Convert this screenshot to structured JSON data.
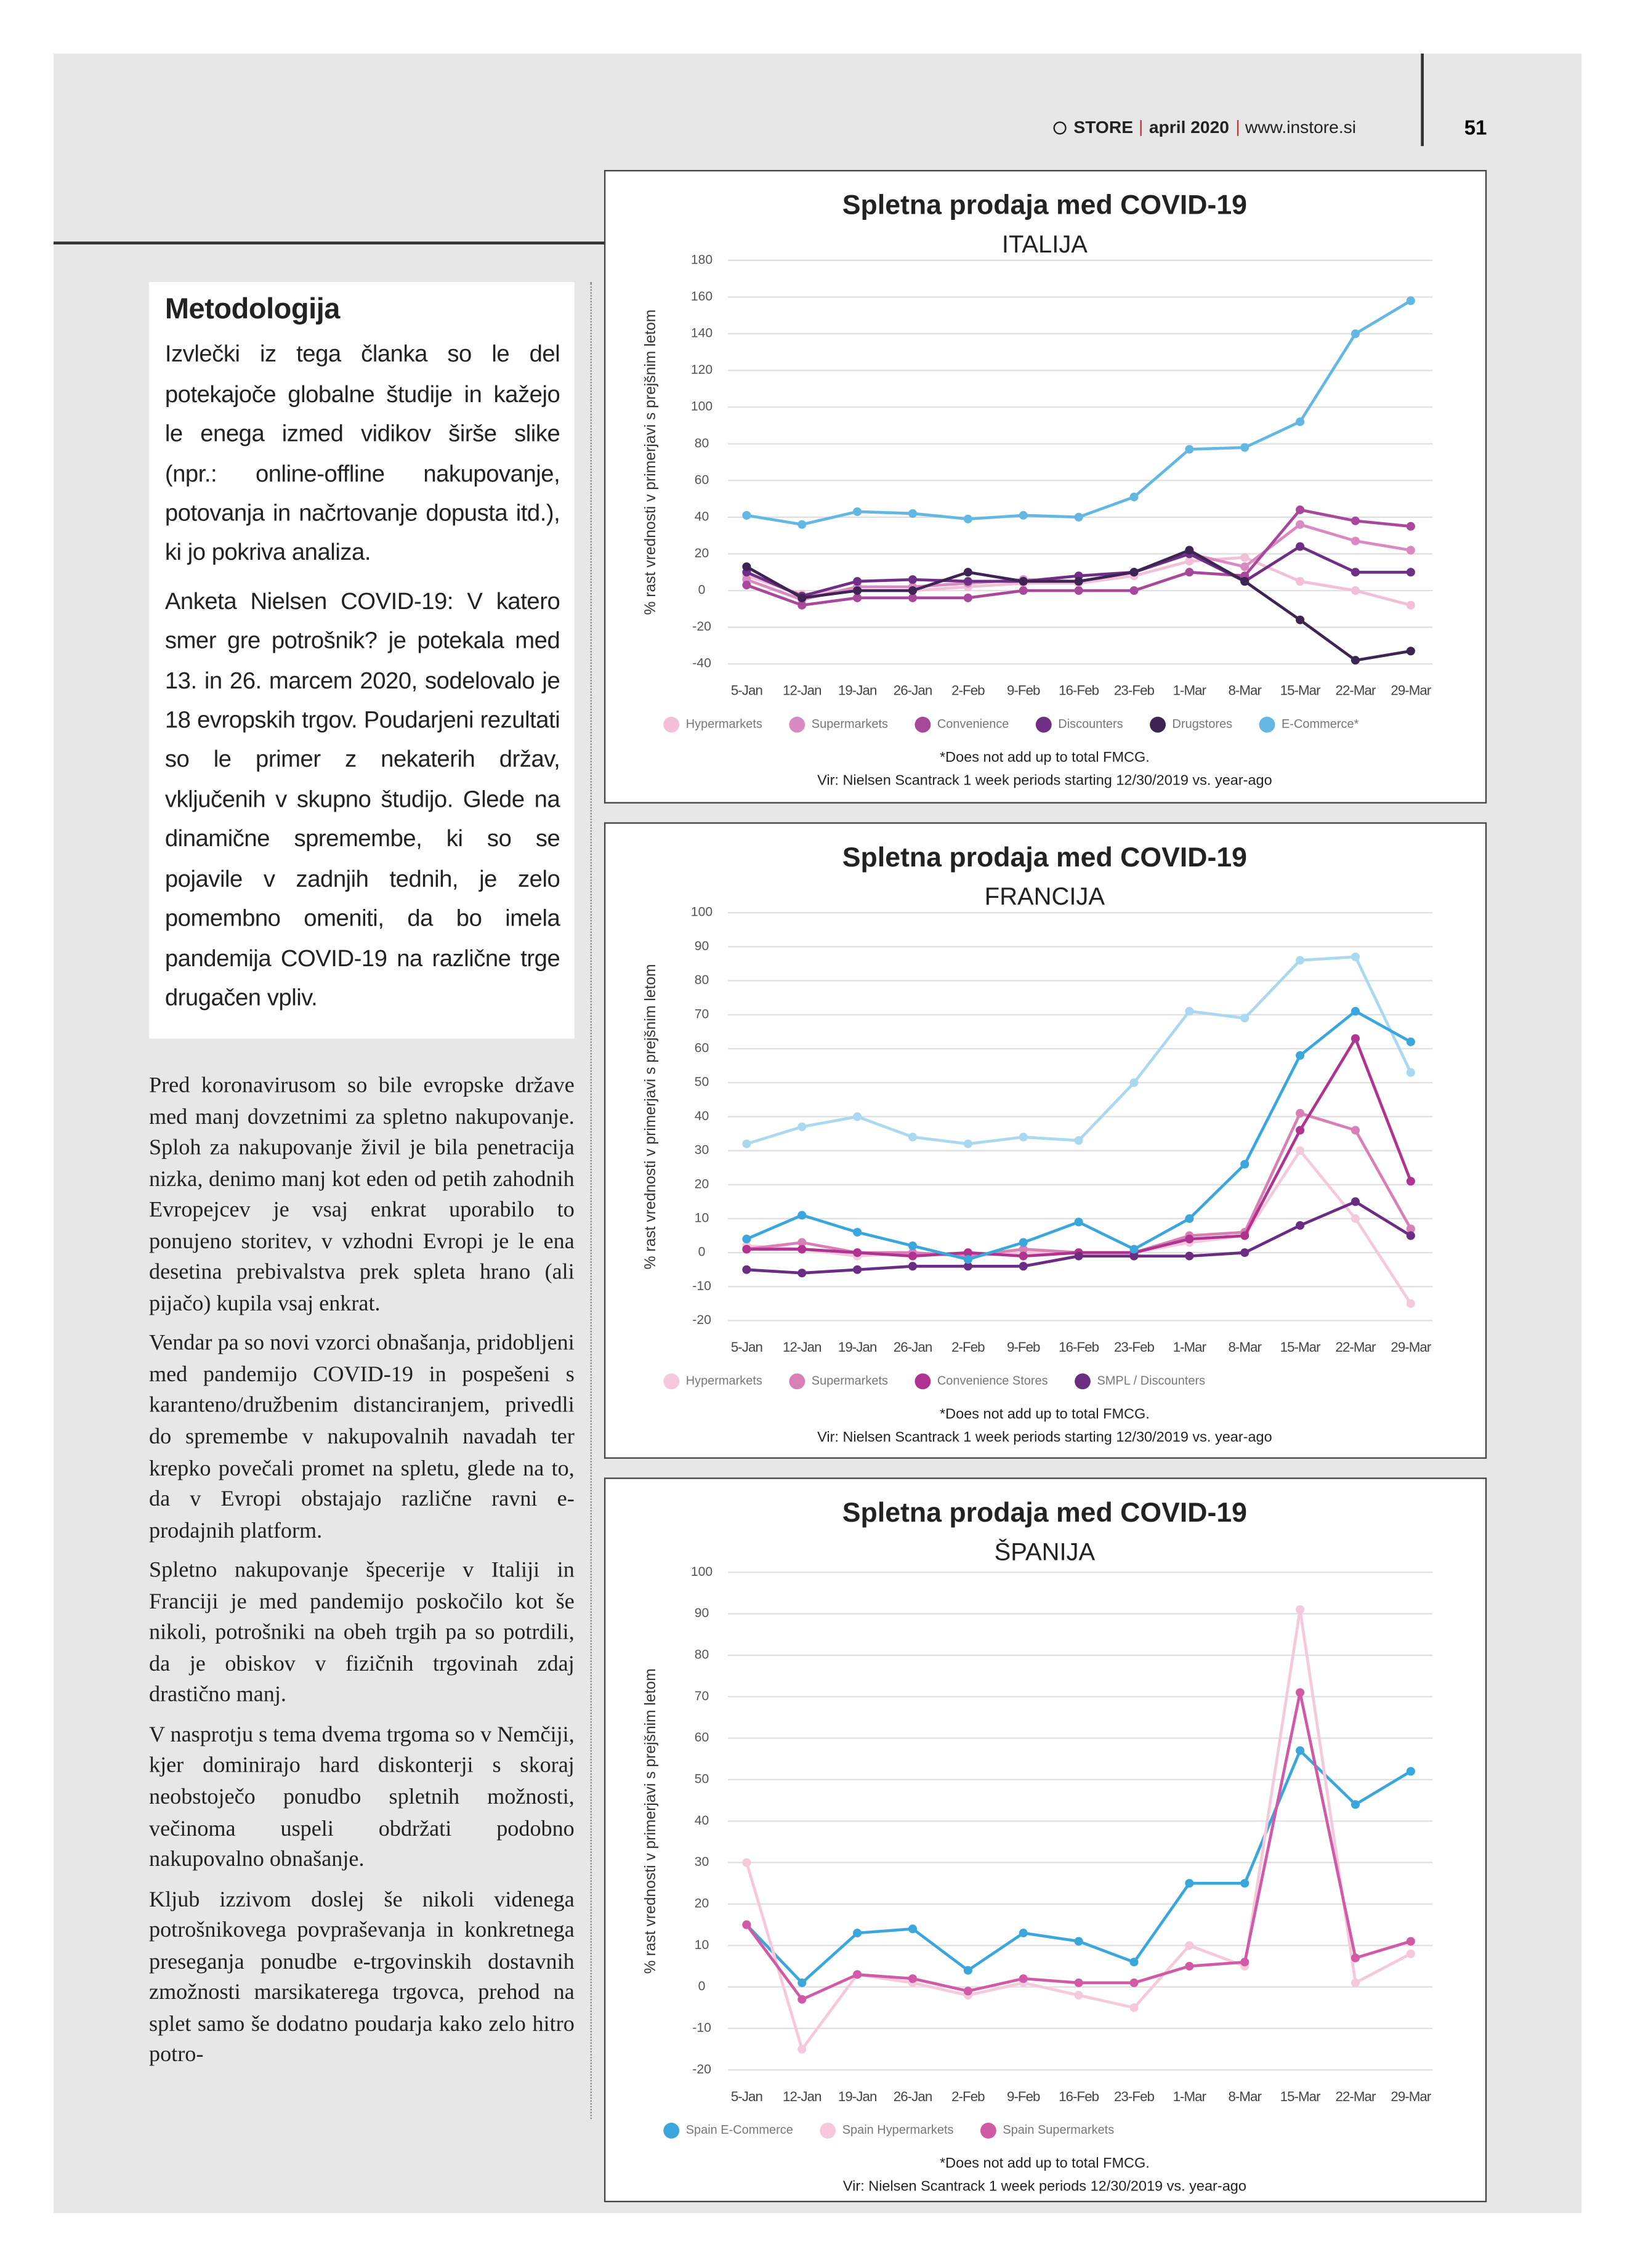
{
  "header": {
    "brand": "STORE",
    "issue": "april 2020",
    "website": "www.instore.si",
    "page_number": "51"
  },
  "sidebar": {
    "title": "Metodologija",
    "paragraphs": [
      "Izvlečki iz tega članka so le del potekajoče globalne študije in kažejo le enega izmed vidikov širše slike (npr.: online-offline nakupovanje, potovanja in načrtovanje dopusta itd.), ki jo pokriva analiza.",
      "Anketa Nielsen COVID-19: V katero smer gre potrošnik? je potekala med 13. in 26. marcem 2020, sodelovalo je 18 evropskih trgov. Poudarjeni rezultati so le primer z nekaterih držav, vključenih v skupno študijo. Glede na dinamične spremembe, ki so se pojavile v zadnjih tednih, je zelo pomembno omeniti, da bo imela pandemija COVID-19 na različne trge drugačen vpliv."
    ]
  },
  "article": {
    "paragraphs": [
      "Pred koronavirusom so bile evropske države med manj dovzetnimi za spletno nakupovanje. Sploh za nakupovanje živil je bila penetracija nizka, denimo manj kot eden od petih zahodnih Evropejcev je vsaj enkrat uporabilo to ponujeno storitev, v vzhodni Evropi je le ena desetina prebivalstva prek spleta hrano (ali pijačo) kupila vsaj enkrat.",
      "Vendar pa so novi vzorci obnašanja, pridobljeni med pandemijo COVID-19 in pospešeni s karanteno/družbenim distanciranjem, privedli do spremembe v nakupovalnih navadah ter krepko povečali promet na spletu, glede na to, da v Evropi obstajajo različne ravni e-prodajnih platform.",
      "Spletno nakupovanje špecerije v Italiji in Franciji je med pandemijo poskočilo kot še nikoli, potrošniki na obeh trgih pa so potrdili, da je obiskov v fizičnih trgovinah zdaj drastično manj.",
      "V nasprotju s tema dvema trgoma so v Nemčiji, kjer dominirajo hard diskonterji s skoraj neobstoječo ponudbo spletnih možnosti, večinoma uspeli obdržati podobno nakupovalno obnašanje.",
      "Kljub izzivom doslej še nikoli videnega potrošnikovega povpraševanja in konkretnega preseganja ponudbe e-trgovinskih dostavnih zmožnosti marsikaterega trgovca, prehod na splet samo še dodatno poudarja kako zelo hitro potro-"
    ]
  },
  "chart_data": [
    {
      "type": "line",
      "title": "Spletna prodaja med COVID-19",
      "subtitle": "ITALIJA",
      "y_label": "% rast vrednosti v primerjavi s prejšnim letom",
      "categories": [
        "5-Jan",
        "12-Jan",
        "19-Jan",
        "26-Jan",
        "2-Feb",
        "9-Feb",
        "16-Feb",
        "23-Feb",
        "1-Mar",
        "8-Mar",
        "15-Mar",
        "22-Mar",
        "29-Mar"
      ],
      "ylim": [
        -40,
        180
      ],
      "yticks": [
        -40,
        -20,
        0,
        20,
        40,
        60,
        80,
        100,
        120,
        140,
        160,
        180
      ],
      "grid": true,
      "legend": "bottom",
      "series": [
        {
          "name": "Hypermarkets",
          "color": "#f3bfd6",
          "values": [
            8,
            -2,
            0,
            0,
            2,
            4,
            4,
            8,
            16,
            18,
            5,
            0,
            -8
          ]
        },
        {
          "name": "Supermarkets",
          "color": "#d98ac2",
          "values": [
            6,
            -5,
            2,
            2,
            4,
            6,
            5,
            10,
            20,
            13,
            36,
            27,
            22
          ]
        },
        {
          "name": "Convenience",
          "color": "#a8489a",
          "values": [
            3,
            -8,
            -4,
            -4,
            -4,
            0,
            0,
            0,
            10,
            8,
            44,
            38,
            35
          ]
        },
        {
          "name": "Discounters",
          "color": "#6f2f86",
          "values": [
            10,
            -3,
            5,
            6,
            5,
            5,
            8,
            10,
            20,
            5,
            24,
            10,
            10
          ]
        },
        {
          "name": "Drugstores",
          "color": "#3d2452",
          "values": [
            13,
            -4,
            0,
            0,
            10,
            5,
            5,
            10,
            22,
            5,
            -16,
            -38,
            -33
          ]
        },
        {
          "name": "E-Commerce*",
          "color": "#63b7e2",
          "values": [
            41,
            36,
            43,
            42,
            39,
            41,
            40,
            51,
            77,
            78,
            92,
            140,
            158
          ]
        }
      ],
      "footnotes": [
        "*Does not add up to total FMCG.",
        "Vir: Nielsen Scantrack 1 week periods starting 12/30/2019 vs. year-ago"
      ]
    },
    {
      "type": "line",
      "title": "Spletna prodaja med COVID-19",
      "subtitle": "FRANCIJA",
      "y_label": "% rast vrednosti v primerjavi s prejšnim letom",
      "categories": [
        "5-Jan",
        "12-Jan",
        "19-Jan",
        "26-Jan",
        "2-Feb",
        "9-Feb",
        "16-Feb",
        "23-Feb",
        "1-Mar",
        "8-Mar",
        "15-Mar",
        "22-Mar",
        "29-Mar"
      ],
      "ylim": [
        -20,
        100
      ],
      "yticks": [
        -20,
        -10,
        0,
        10,
        20,
        30,
        40,
        50,
        60,
        70,
        80,
        90,
        100
      ],
      "grid": true,
      "legend": "bottom",
      "series": [
        {
          "name": "Hypermarkets",
          "color": "#f6c8dc",
          "values": [
            2,
            1,
            -1,
            0,
            -1,
            0,
            0,
            0,
            3,
            5,
            30,
            10,
            -15
          ]
        },
        {
          "name": "Supermarkets",
          "color": "#d880b6",
          "values": [
            1,
            3,
            0,
            0,
            -1,
            1,
            0,
            0,
            5,
            6,
            41,
            36,
            7
          ]
        },
        {
          "name": "Convenience Stores",
          "color": "#b0348f",
          "values": [
            1,
            1,
            0,
            -1,
            0,
            -1,
            0,
            0,
            4,
            5,
            36,
            63,
            21
          ]
        },
        {
          "name": "SMPL / Discounters",
          "color": "#6a2d82",
          "values": [
            -5,
            -6,
            -5,
            -4,
            -4,
            -4,
            -1,
            -1,
            -1,
            0,
            8,
            15,
            5
          ]
        },
        {
          "name": null,
          "color": "#a9d8f0",
          "values": [
            32,
            37,
            40,
            34,
            32,
            34,
            33,
            50,
            71,
            69,
            86,
            87,
            53
          ]
        },
        {
          "name": null,
          "color": "#3aa6dc",
          "values": [
            4,
            11,
            6,
            2,
            -2,
            3,
            9,
            1,
            10,
            26,
            58,
            71,
            62
          ]
        }
      ],
      "footnotes": [
        "*Does not add up to total FMCG.",
        "Vir: Nielsen Scantrack 1 week periods starting 12/30/2019 vs. year-ago"
      ]
    },
    {
      "type": "line",
      "title": "Spletna prodaja med COVID-19",
      "subtitle": "ŠPANIJA",
      "y_label": "% rast vrednosti v primerjavi s prejšnim letom",
      "categories": [
        "5-Jan",
        "12-Jan",
        "19-Jan",
        "26-Jan",
        "2-Feb",
        "9-Feb",
        "16-Feb",
        "23-Feb",
        "1-Mar",
        "8-Mar",
        "15-Mar",
        "22-Mar",
        "29-Mar"
      ],
      "ylim": [
        -20,
        100
      ],
      "yticks": [
        -20,
        -10,
        0,
        10,
        20,
        30,
        40,
        50,
        60,
        70,
        80,
        90,
        100
      ],
      "grid": true,
      "legend": "bottom",
      "series": [
        {
          "name": "Spain E-Commerce",
          "color": "#3aa6dc",
          "values": [
            15,
            1,
            13,
            14,
            4,
            13,
            11,
            6,
            25,
            25,
            57,
            44,
            52
          ]
        },
        {
          "name": "Spain Hypermarkets",
          "color": "#f6c8dc",
          "values": [
            30,
            -15,
            3,
            1,
            -2,
            1,
            -2,
            -5,
            10,
            5,
            91,
            1,
            8
          ]
        },
        {
          "name": "Spain Supermarkets",
          "color": "#d15aa6",
          "values": [
            15,
            -3,
            3,
            2,
            -1,
            2,
            1,
            1,
            5,
            6,
            71,
            7,
            11
          ]
        }
      ],
      "footnotes": [
        "*Does not add up to total FMCG.",
        "Vir: Nielsen Scantrack 1 week periods 12/30/2019 vs. year-ago"
      ]
    }
  ]
}
